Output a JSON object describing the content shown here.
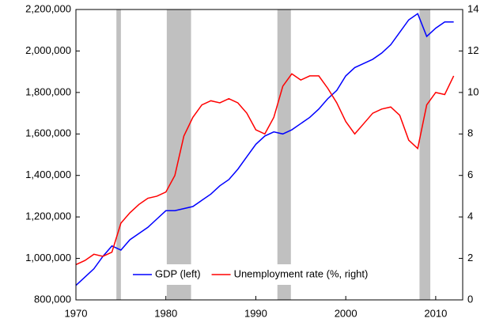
{
  "chart_data": {
    "type": "line",
    "x": [
      1970,
      1971,
      1972,
      1973,
      1974,
      1975,
      1976,
      1977,
      1978,
      1979,
      1980,
      1981,
      1982,
      1983,
      1984,
      1985,
      1986,
      1987,
      1988,
      1989,
      1990,
      1991,
      1992,
      1993,
      1994,
      1995,
      1996,
      1997,
      1998,
      1999,
      2000,
      2001,
      2002,
      2003,
      2004,
      2005,
      2006,
      2007,
      2008,
      2009,
      2010,
      2011,
      2012
    ],
    "series": [
      {
        "name": "GDP (left)",
        "color": "#0000ff",
        "axis": "y",
        "values": [
          870000,
          910000,
          950000,
          1010000,
          1060000,
          1040000,
          1090000,
          1120000,
          1150000,
          1190000,
          1230000,
          1230000,
          1240000,
          1250000,
          1280000,
          1310000,
          1350000,
          1380000,
          1430000,
          1490000,
          1550000,
          1590000,
          1610000,
          1600000,
          1620000,
          1650000,
          1680000,
          1720000,
          1770000,
          1810000,
          1880000,
          1920000,
          1940000,
          1960000,
          1990000,
          2030000,
          2090000,
          2150000,
          2180000,
          2070000,
          2110000,
          2140000,
          2140000
        ]
      },
      {
        "name": "Unemployment rate (%, right)",
        "color": "#ff0000",
        "axis": "y2",
        "values": [
          1.7,
          1.9,
          2.2,
          2.1,
          2.3,
          3.7,
          4.2,
          4.6,
          4.9,
          5.0,
          5.2,
          6.0,
          7.9,
          8.8,
          9.4,
          9.6,
          9.5,
          9.7,
          9.5,
          9.0,
          8.2,
          8.0,
          8.8,
          10.3,
          10.9,
          10.6,
          10.8,
          10.8,
          10.2,
          9.5,
          8.6,
          8.0,
          8.5,
          9.0,
          9.2,
          9.3,
          8.9,
          7.7,
          7.3,
          9.4,
          10.0,
          9.9,
          10.8
        ]
      }
    ],
    "shaded_periods": [
      [
        1974.5,
        1975.0
      ],
      [
        1980.1,
        1982.8
      ],
      [
        1992.4,
        1993.9
      ],
      [
        2008.2,
        2009.4
      ]
    ],
    "shade_color": "#c0c0c0",
    "xlim": [
      1970,
      2013
    ],
    "xticks": [
      1970,
      1980,
      1990,
      2000,
      2010
    ],
    "ylim": [
      800000,
      2200000
    ],
    "yticks": [
      {
        "value": 800000,
        "label": "800,000"
      },
      {
        "value": 1000000,
        "label": "1,000,000"
      },
      {
        "value": 1200000,
        "label": "1,200,000"
      },
      {
        "value": 1400000,
        "label": "1,400,000"
      },
      {
        "value": 1600000,
        "label": "1,600,000"
      },
      {
        "value": 1800000,
        "label": "1,800,000"
      },
      {
        "value": 2000000,
        "label": "2,000,000"
      },
      {
        "value": 2200000,
        "label": "2,200,000"
      }
    ],
    "y2lim": [
      0,
      14
    ],
    "y2ticks": [
      0,
      2,
      4,
      6,
      8,
      10,
      12,
      14
    ],
    "grid": false,
    "legend": "bottom"
  }
}
